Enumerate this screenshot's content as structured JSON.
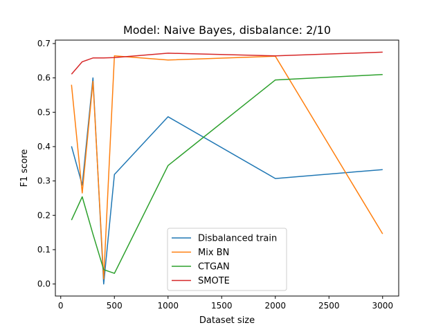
{
  "chart_data": {
    "type": "line",
    "title": "Model: Naive Bayes, disbalance: 2/10",
    "xlabel": "Dataset size",
    "ylabel": "F1 score",
    "xlim": [
      -50,
      3150
    ],
    "ylim": [
      -0.035,
      0.71
    ],
    "xticks": [
      0,
      500,
      1000,
      1500,
      2000,
      2500,
      3000
    ],
    "yticks": [
      0.0,
      0.1,
      0.2,
      0.3,
      0.4,
      0.5,
      0.6,
      0.7
    ],
    "x": [
      100,
      200,
      300,
      400,
      500,
      1000,
      2000,
      3000
    ],
    "grid": false,
    "legend_position": "bottom-center",
    "series": [
      {
        "name": "Disbalanced train",
        "color": "#1f77b4",
        "values": [
          0.401,
          0.288,
          0.6,
          0.0,
          0.319,
          0.487,
          0.307,
          0.333
        ]
      },
      {
        "name": "Mix BN",
        "color": "#ff7f0e",
        "values": [
          0.58,
          0.265,
          0.59,
          0.015,
          0.664,
          0.652,
          0.663,
          0.146
        ]
      },
      {
        "name": "CTGAN",
        "color": "#2ca02c",
        "values": [
          0.186,
          0.254,
          0.145,
          0.042,
          0.031,
          0.345,
          0.594,
          0.61
        ]
      },
      {
        "name": "SMOTE",
        "color": "#d62728",
        "values": [
          0.611,
          0.647,
          0.658,
          0.658,
          0.659,
          0.672,
          0.664,
          0.675
        ]
      }
    ]
  }
}
